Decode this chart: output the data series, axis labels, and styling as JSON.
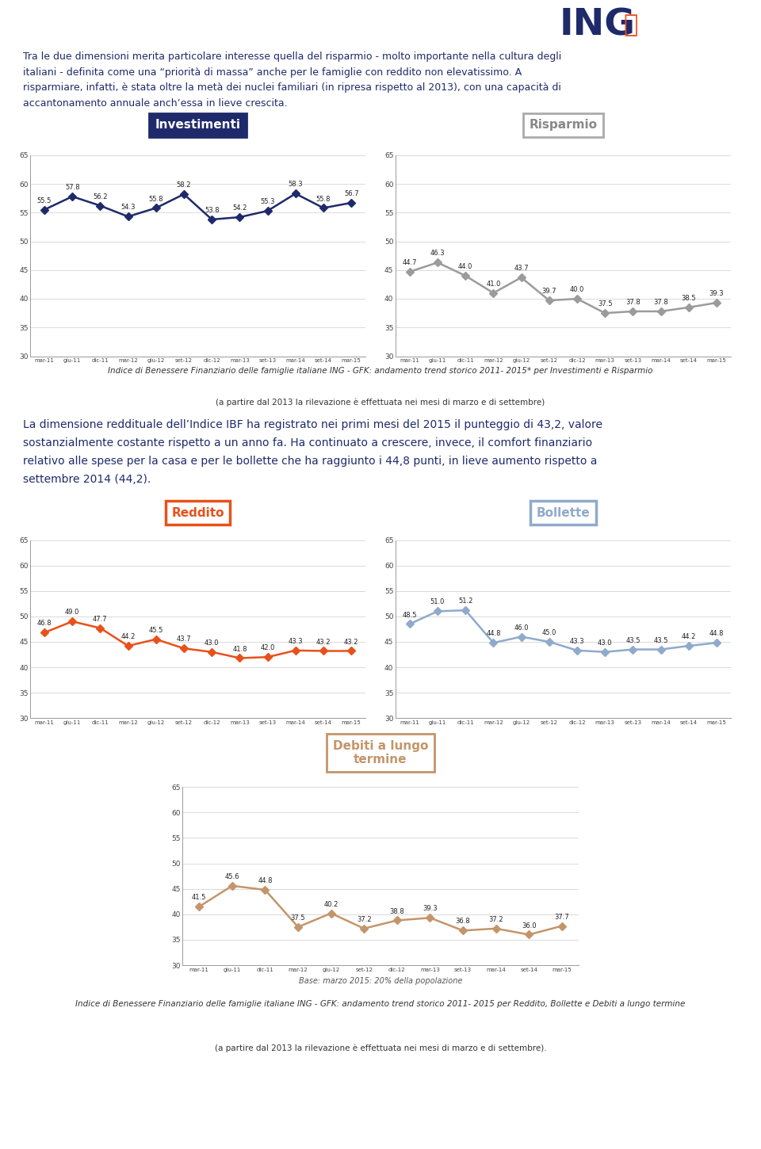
{
  "para1": "Tra le due dimensioni merita particolare interesse quella del risparmio - molto importante nella cultura degli\nitaliani - definita come una “priorità di massa” anche per le famiglie con reddito non elevatissimo. A\nrisparmiare, infatti, è stata oltre la metà dei nuclei familiari (in ripresa rispetto al 2013), con una capacità di\naccantonamento annuale anch’essa in lieve crescita.",
  "investimenti_values": [
    55.5,
    57.8,
    56.2,
    54.3,
    55.8,
    58.2,
    53.8,
    54.2,
    55.3,
    58.3,
    55.8,
    56.7
  ],
  "risparmio_values": [
    44.7,
    46.3,
    44.0,
    41.0,
    43.7,
    39.7,
    40.0,
    37.5,
    37.8,
    37.8,
    38.5,
    39.3
  ],
  "reddito_values": [
    46.8,
    49.0,
    47.7,
    44.2,
    45.5,
    43.7,
    43.0,
    41.8,
    42.0,
    43.3,
    43.2,
    43.2
  ],
  "bollette_values": [
    48.5,
    51.0,
    51.2,
    44.8,
    46.0,
    45.0,
    43.3,
    43.0,
    43.5,
    43.5,
    44.2,
    44.8
  ],
  "debiti_values": [
    41.5,
    45.6,
    44.8,
    37.5,
    40.2,
    37.2,
    38.8,
    39.3,
    36.8,
    37.2,
    36.0,
    37.7
  ],
  "x_labels": [
    "mar-11",
    "giu-11",
    "dic-11",
    "mar-12",
    "giu-12",
    "set-12",
    "dic-12",
    "mar-13",
    "set-13",
    "mar-14",
    "set-14",
    "mar-15"
  ],
  "investimenti_color": "#1F2A6B",
  "risparmio_color": "#9B9B9B",
  "reddito_color": "#E8511A",
  "bollette_color": "#8FAACC",
  "debiti_color": "#C4956A",
  "caption1_line1": "Indice di Benessere Finanziario delle famiglie italiane ING - GFK: andamento trend storico 2011- 2015* per Investimenti e Risparmio",
  "caption1_line2": "(a partire dal 2013 la rilevazione è effettuata nei mesi di marzo e di settembre)",
  "caption2_line1": "Indice di Benessere Finanziario delle famiglie italiane ING - GFK: andamento trend storico 2011- 2015 per Reddito, Bollette e Debiti a lungo termine",
  "caption2_line2": "(a partire dal 2013 la rilevazione è effettuata nei mesi di marzo e di settembre).",
  "debiti_base_note": "Base: marzo 2015: 20% della popolazione"
}
